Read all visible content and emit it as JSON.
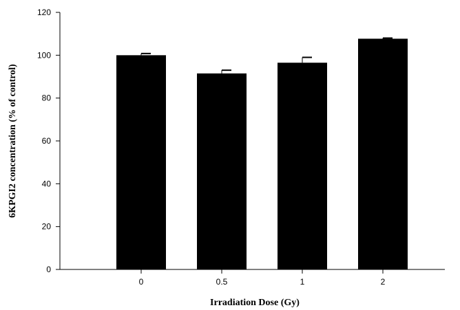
{
  "chart_data": {
    "type": "bar",
    "title": "",
    "xlabel": "Irradiation Dose (Gy)",
    "ylabel": "6KPGI2 concentration (% of control)",
    "categories": [
      "0",
      "0.5",
      "1",
      "2"
    ],
    "values": [
      100,
      91.5,
      96.5,
      107.7
    ],
    "errors": [
      0.8,
      1.5,
      2.5,
      0.3
    ],
    "ylim": [
      0,
      120
    ],
    "yticks": [
      "0",
      "20",
      "40",
      "60",
      "80",
      "100",
      "120"
    ],
    "grid": false,
    "bar_color": "#000000"
  }
}
